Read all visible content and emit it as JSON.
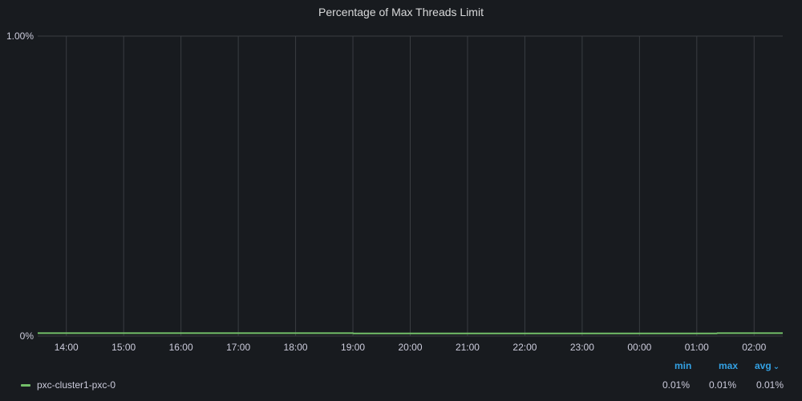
{
  "panel": {
    "title": "Percentage of Max Threads Limit"
  },
  "colors": {
    "background": "#181b1f",
    "grid": "#3a3d42",
    "text": "#ccccdc",
    "series": "#73bf69",
    "legend_header": "#33a2e5"
  },
  "chart_data": {
    "type": "line",
    "title": "Percentage of Max Threads Limit",
    "xlabel": "",
    "ylabel": "",
    "x_ticks": [
      "14:00",
      "15:00",
      "16:00",
      "17:00",
      "18:00",
      "19:00",
      "20:00",
      "21:00",
      "22:00",
      "23:00",
      "00:00",
      "01:00",
      "02:00"
    ],
    "x_range_hours": [
      13.5,
      26.5
    ],
    "ylim": [
      0,
      1.0
    ],
    "y_ticks": [
      0,
      1.0
    ],
    "y_tick_labels": [
      "0%",
      "1.00%"
    ],
    "grid": true,
    "legend_position": "bottom",
    "series": [
      {
        "name": "pxc-cluster1-pxc-0",
        "color": "#73bf69",
        "x": [
          13.5,
          19.0,
          19.01,
          25.35,
          25.36,
          26.5
        ],
        "y": [
          0.0097,
          0.0097,
          0.0085,
          0.0085,
          0.0097,
          0.0097
        ]
      }
    ]
  },
  "legend": {
    "columns": {
      "min": "min",
      "max": "max",
      "avg": "avg"
    },
    "sort_icon": "chevron-down-icon",
    "series": [
      {
        "name": "pxc-cluster1-pxc-0",
        "min": "0.01%",
        "max": "0.01%",
        "avg": "0.01%"
      }
    ]
  }
}
